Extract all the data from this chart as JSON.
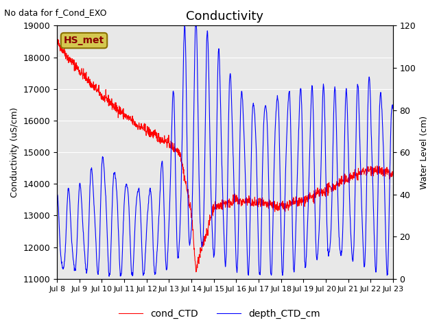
{
  "title": "Conductivity",
  "ylabel_left": "Conductivity (uS/cm)",
  "ylabel_right": "Water Level (cm)",
  "ylim_left": [
    11000,
    19000
  ],
  "ylim_right": [
    0,
    120
  ],
  "no_data_text": "No data for f_Cond_EXO",
  "hs_met_label": "HS_met",
  "legend_labels": [
    "cond_CTD",
    "depth_CTD_cm"
  ],
  "legend_colors": [
    "red",
    "blue"
  ],
  "bg_color": "#e8e8e8",
  "xtick_labels": [
    "Jul 8",
    "Jul 9",
    "Jul 10",
    "Jul 11",
    "Jul 12",
    "Jul 13",
    "Jul 14",
    "Jul 15",
    "Jul 16",
    "Jul 17",
    "Jul 18",
    "Jul 19",
    "Jul 20",
    "Jul 21",
    "Jul 22",
    "Jul 23"
  ]
}
